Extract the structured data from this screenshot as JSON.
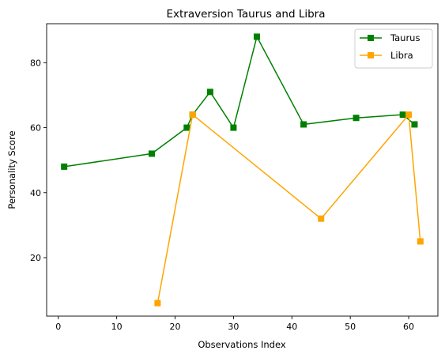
{
  "chart_data": {
    "type": "line",
    "title": "Extraversion Taurus and Libra",
    "xlabel": "Observations Index",
    "ylabel": "Personality Score",
    "xlim": [
      -2,
      65
    ],
    "ylim": [
      2,
      92
    ],
    "xticks": [
      0,
      10,
      20,
      30,
      40,
      50,
      60
    ],
    "yticks": [
      20,
      40,
      60,
      80
    ],
    "grid": false,
    "legend_position": "top-right",
    "series": [
      {
        "name": "Taurus",
        "color": "#008000",
        "marker": "square",
        "x": [
          1,
          16,
          22,
          23,
          26,
          30,
          34,
          42,
          51,
          59,
          61
        ],
        "y": [
          48,
          52,
          60,
          64,
          71,
          60,
          88,
          61,
          63,
          64,
          61
        ]
      },
      {
        "name": "Libra",
        "color": "#FFA500",
        "marker": "square",
        "x": [
          17,
          23,
          45,
          60,
          62
        ],
        "y": [
          6,
          64,
          32,
          64,
          25
        ]
      }
    ]
  }
}
